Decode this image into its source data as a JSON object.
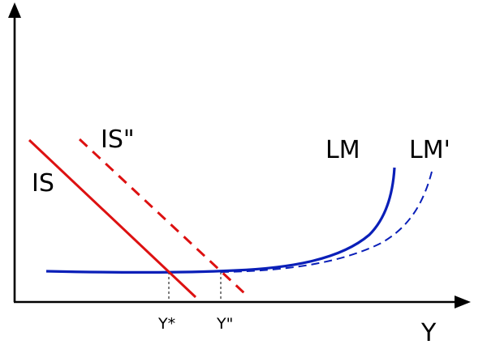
{
  "labels": {
    "is": "IS",
    "is_shifted": "IS\"",
    "lm": "LM",
    "lm_shifted": "LM'",
    "y_star": "Y*",
    "y_double_prime": "Y\"",
    "x_axis": "Y"
  },
  "colors": {
    "is_curves": "#dd1111",
    "lm_curves": "#0a1fb8",
    "axes": "#000000",
    "guides": "#000000"
  },
  "line_styles": {
    "is": "solid",
    "is_shifted": "dashed",
    "lm": "solid",
    "lm_shifted": "dashed"
  }
}
